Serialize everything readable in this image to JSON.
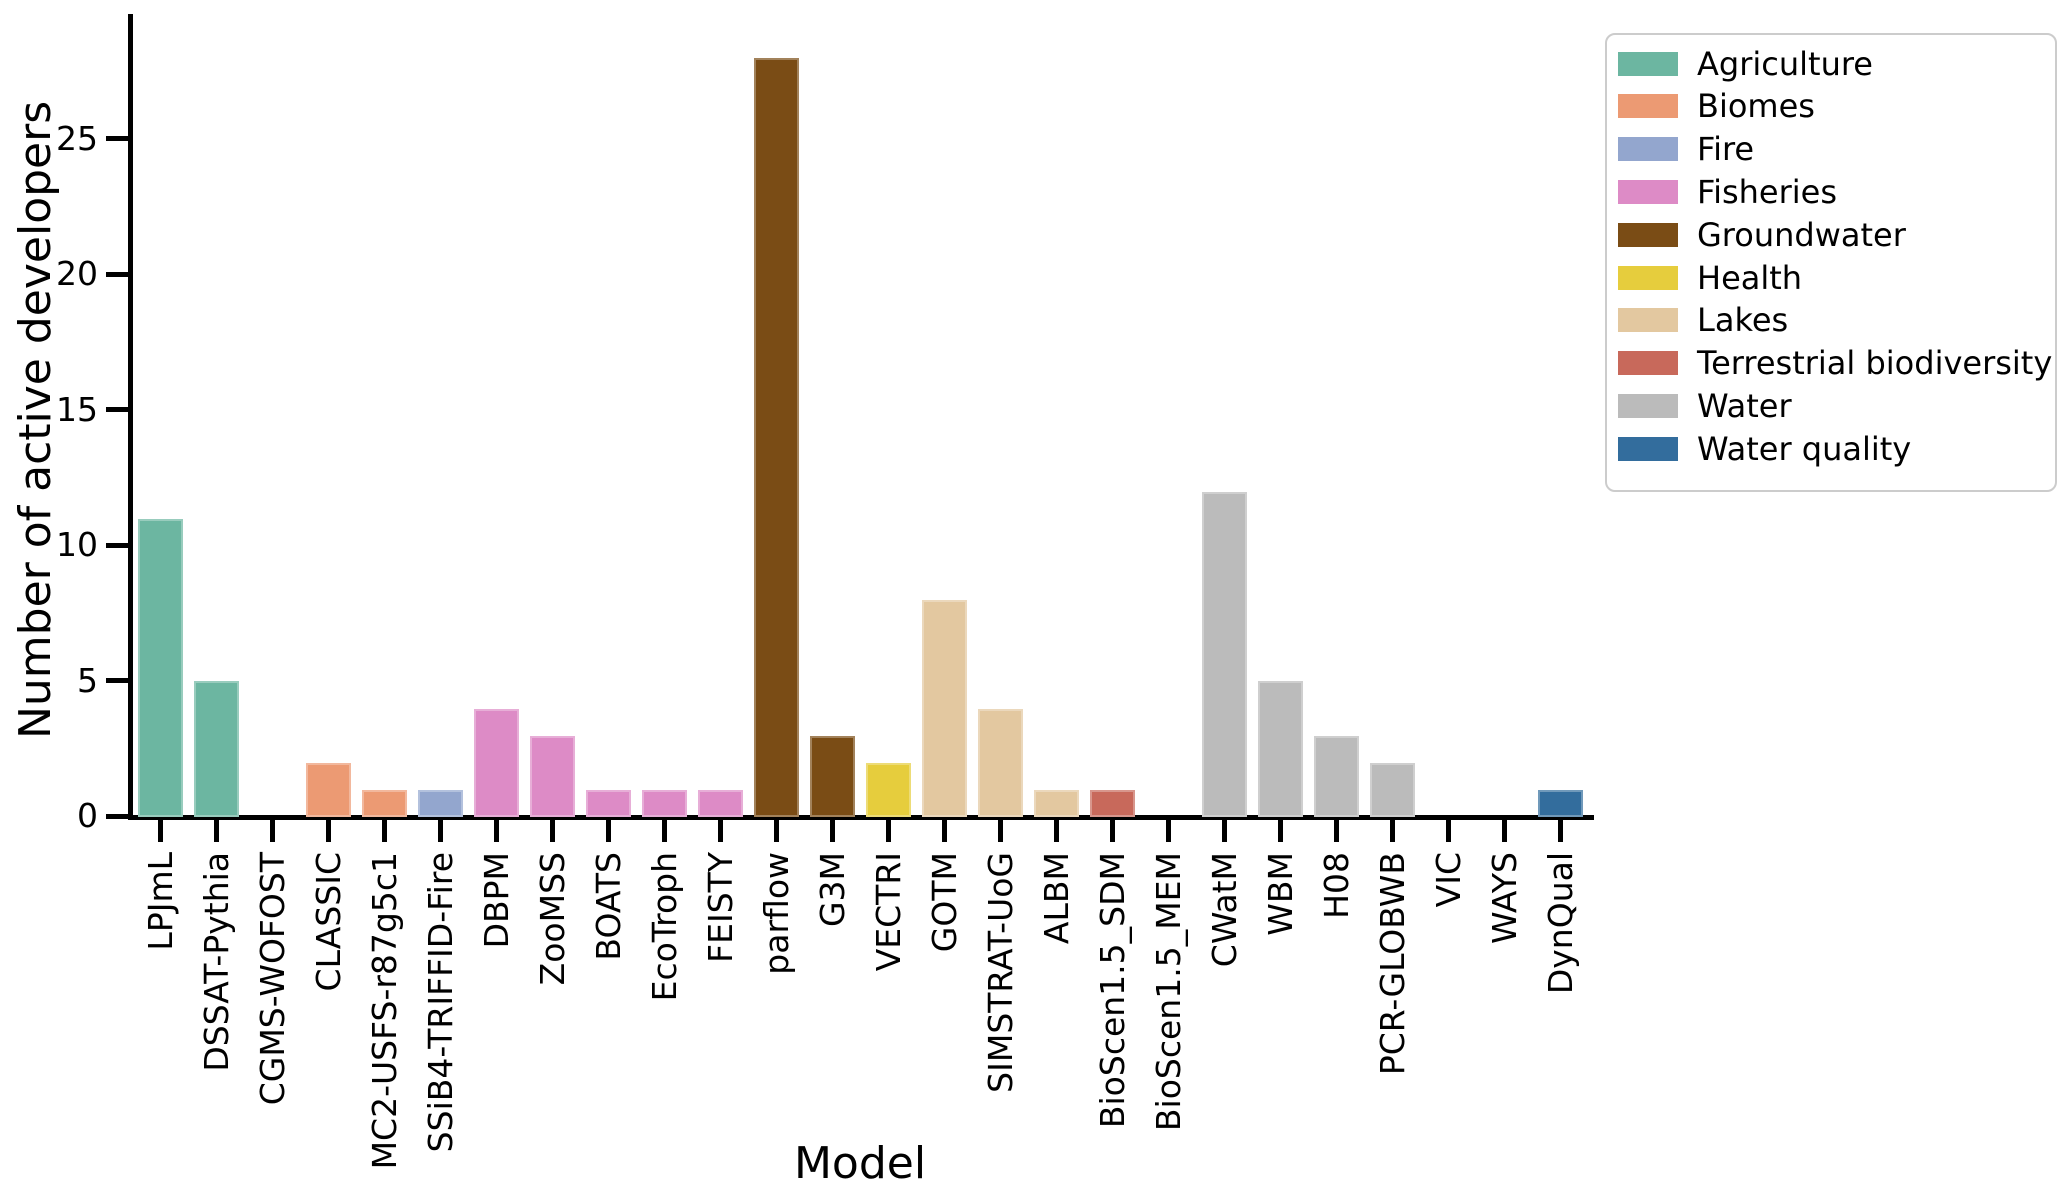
{
  "figure": {
    "background": "#ffffff",
    "axis_color": "#000000"
  },
  "chart_data": {
    "type": "bar",
    "title": "",
    "xlabel": "Model",
    "ylabel": "Number of active developers",
    "ylim": [
      0,
      29.5
    ],
    "yticks": [
      0,
      5,
      10,
      15,
      20,
      25
    ],
    "grid": false,
    "legend_position": "upper-right-outside-plot",
    "sector_colors": {
      "Agriculture": "#6cb6a1",
      "Biomes": "#ec9a73",
      "Fire": "#93a6ce",
      "Fisheries": "#dd8bc6",
      "Groundwater": "#7a4c15",
      "Health": "#e6cd3d",
      "Lakes": "#e3c8a0",
      "Terrestrial biodiversity": "#c8695b",
      "Water": "#bbbbbb",
      "Water quality": "#336d9d"
    },
    "legend_entries": [
      {
        "label": "Agriculture",
        "color": "#6cb6a1"
      },
      {
        "label": "Biomes",
        "color": "#ec9a73"
      },
      {
        "label": "Fire",
        "color": "#93a6ce"
      },
      {
        "label": "Fisheries",
        "color": "#dd8bc6"
      },
      {
        "label": "Groundwater",
        "color": "#7a4c15"
      },
      {
        "label": "Health",
        "color": "#e6cd3d"
      },
      {
        "label": "Lakes",
        "color": "#e3c8a0"
      },
      {
        "label": "Terrestrial biodiversity",
        "color": "#c8695b"
      },
      {
        "label": "Water",
        "color": "#bbbbbb"
      },
      {
        "label": "Water quality",
        "color": "#336d9d"
      }
    ],
    "bars": [
      {
        "model": "LPJmL",
        "sector": "Agriculture",
        "value": 11
      },
      {
        "model": "DSSAT-Pythia",
        "sector": "Agriculture",
        "value": 5
      },
      {
        "model": "CGMS-WOFOST",
        "sector": "Agriculture",
        "value": 0
      },
      {
        "model": "CLASSIC",
        "sector": "Biomes",
        "value": 2
      },
      {
        "model": "MC2-USFS-r87g5c1",
        "sector": "Biomes",
        "value": 1
      },
      {
        "model": "SSiB4-TRIFFID-Fire",
        "sector": "Fire",
        "value": 1
      },
      {
        "model": "DBPM",
        "sector": "Fisheries",
        "value": 4
      },
      {
        "model": "ZooMSS",
        "sector": "Fisheries",
        "value": 3
      },
      {
        "model": "BOATS",
        "sector": "Fisheries",
        "value": 1
      },
      {
        "model": "EcoTroph",
        "sector": "Fisheries",
        "value": 1
      },
      {
        "model": "FEISTY",
        "sector": "Fisheries",
        "value": 1
      },
      {
        "model": "parflow",
        "sector": "Groundwater",
        "value": 28
      },
      {
        "model": "G3M",
        "sector": "Groundwater",
        "value": 3
      },
      {
        "model": "VECTRI",
        "sector": "Health",
        "value": 2
      },
      {
        "model": "GOTM",
        "sector": "Lakes",
        "value": 8
      },
      {
        "model": "SIMSTRAT-UoG",
        "sector": "Lakes",
        "value": 4
      },
      {
        "model": "ALBM",
        "sector": "Lakes",
        "value": 1
      },
      {
        "model": "BioScen1.5_SDM",
        "sector": "Terrestrial biodiversity",
        "value": 1
      },
      {
        "model": "BioScen1.5_MEM",
        "sector": "Terrestrial biodiversity",
        "value": 0
      },
      {
        "model": "CWatM",
        "sector": "Water",
        "value": 12
      },
      {
        "model": "WBM",
        "sector": "Water",
        "value": 5
      },
      {
        "model": "H08",
        "sector": "Water",
        "value": 3
      },
      {
        "model": "PCR-GLOBWB",
        "sector": "Water",
        "value": 2
      },
      {
        "model": "VIC",
        "sector": "Water",
        "value": 0
      },
      {
        "model": "WAYS",
        "sector": "Water",
        "value": 0
      },
      {
        "model": "DynQual",
        "sector": "Water quality",
        "value": 1
      }
    ]
  }
}
